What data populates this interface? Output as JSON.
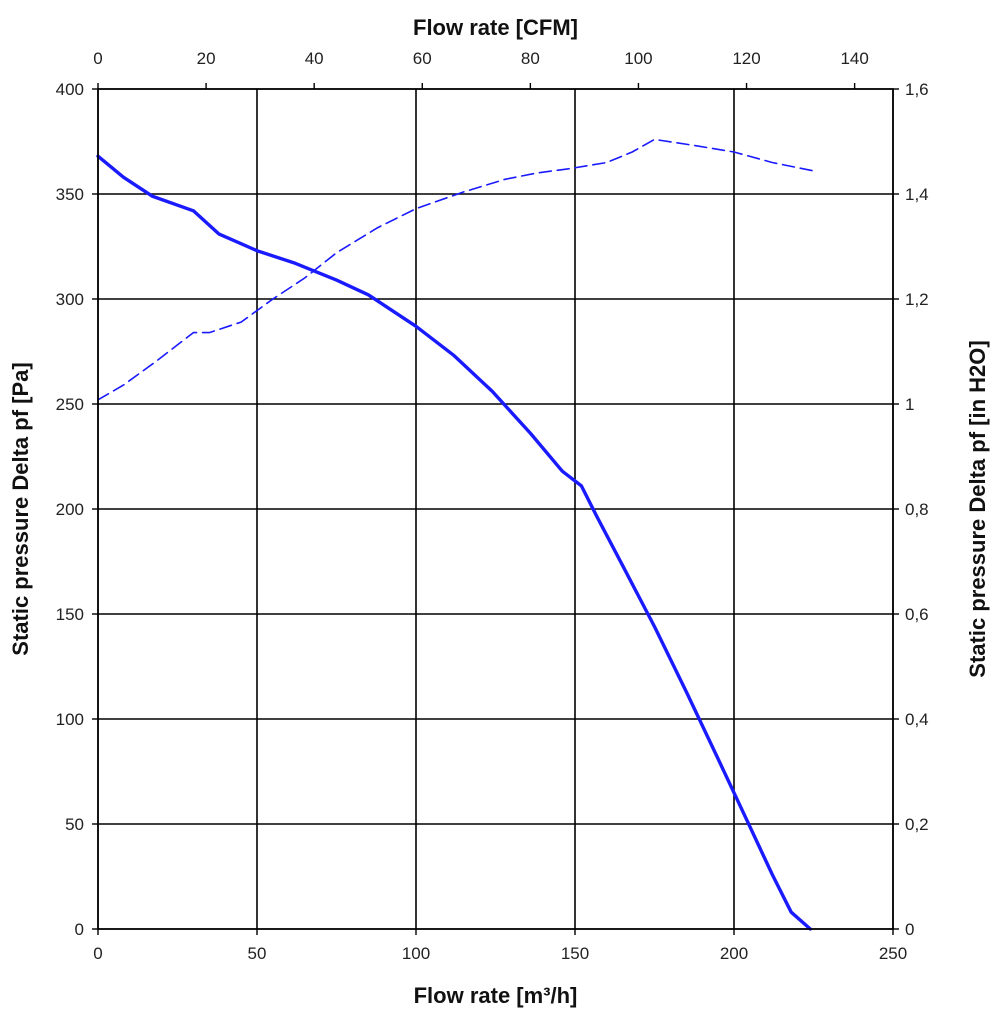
{
  "chart_data": {
    "type": "line",
    "xlabel_bottom": "Flow rate [m³/h]",
    "xlabel_top": "Flow rate [CFM]",
    "ylabel_left": "Static pressure Delta pf [Pa]",
    "ylabel_right": "Static pressure Delta pf [in H2O]",
    "x_bottom": {
      "range": [
        0,
        250
      ],
      "ticks": [
        0,
        50,
        100,
        150,
        200,
        250
      ],
      "tick_labels": [
        "0",
        "50",
        "100",
        "150",
        "200",
        "250"
      ]
    },
    "x_top": {
      "range": [
        0,
        147.1
      ],
      "ticks": [
        0,
        20,
        40,
        60,
        80,
        100,
        120,
        140
      ],
      "tick_labels": [
        "0",
        "20",
        "40",
        "60",
        "80",
        "100",
        "120",
        "140"
      ]
    },
    "y_left": {
      "range": [
        0,
        400
      ],
      "ticks": [
        0,
        50,
        100,
        150,
        200,
        250,
        300,
        350,
        400
      ],
      "tick_labels": [
        "0",
        "50",
        "100",
        "150",
        "200",
        "250",
        "300",
        "350",
        "400"
      ]
    },
    "y_right": {
      "range": [
        0,
        1.6
      ],
      "ticks": [
        0,
        0.2,
        0.4,
        0.6,
        0.8,
        1.0,
        1.2,
        1.4,
        1.6
      ],
      "tick_labels": [
        "0",
        "0,2",
        "0,4",
        "0,6",
        "0,8",
        "1",
        "1,2",
        "1,4",
        "1,6"
      ]
    },
    "grid": true,
    "series": [
      {
        "style": "solid",
        "color": "#1a1aff",
        "axis": "left-bottom",
        "points": [
          [
            0,
            368
          ],
          [
            8,
            358
          ],
          [
            17,
            349
          ],
          [
            30,
            342
          ],
          [
            38,
            331
          ],
          [
            50,
            323
          ],
          [
            62,
            317
          ],
          [
            75,
            309
          ],
          [
            85,
            302
          ],
          [
            100,
            287
          ],
          [
            112,
            273
          ],
          [
            124,
            256
          ],
          [
            136,
            236
          ],
          [
            146,
            218
          ],
          [
            152,
            211
          ],
          [
            157,
            196
          ],
          [
            165,
            173
          ],
          [
            175,
            144
          ],
          [
            185,
            113
          ],
          [
            195,
            81
          ],
          [
            204,
            52
          ],
          [
            212,
            26
          ],
          [
            218,
            8
          ],
          [
            224,
            0
          ]
        ]
      },
      {
        "style": "dashed",
        "color": "#1a1aff",
        "axis": "left-bottom",
        "points": [
          [
            0,
            252
          ],
          [
            8,
            259
          ],
          [
            18,
            270
          ],
          [
            30,
            284
          ],
          [
            35,
            284
          ],
          [
            45,
            289
          ],
          [
            55,
            300
          ],
          [
            65,
            310
          ],
          [
            75,
            322
          ],
          [
            88,
            334
          ],
          [
            100,
            343
          ],
          [
            115,
            351
          ],
          [
            128,
            357
          ],
          [
            138,
            360
          ],
          [
            148,
            362
          ],
          [
            160,
            365
          ],
          [
            168,
            370
          ],
          [
            175,
            376
          ],
          [
            188,
            373
          ],
          [
            200,
            370
          ],
          [
            212,
            365
          ],
          [
            225,
            361
          ]
        ]
      }
    ]
  }
}
